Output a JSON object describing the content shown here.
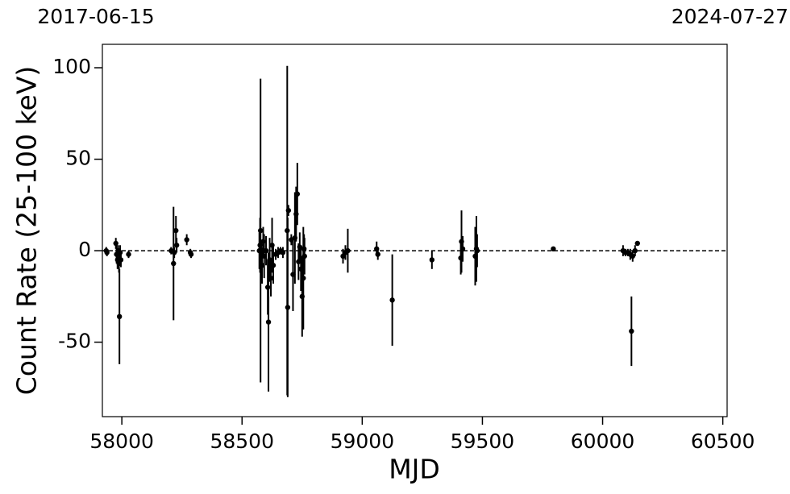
{
  "chart_data": {
    "type": "errorbar-scatter",
    "xlabel": "MJD",
    "ylabel": "Count Rate (25-100 keV)",
    "xlim": [
      57919,
      60518
    ],
    "ylim": [
      -90.7,
      112.8
    ],
    "xticks": [
      58000,
      58500,
      59000,
      59500,
      60000,
      60500
    ],
    "yticks": [
      -50,
      0,
      50,
      100
    ],
    "top_xticks": [
      {
        "value": 57919,
        "label": "2017-06-15"
      },
      {
        "value": 60518,
        "label": "2024-07-27"
      }
    ],
    "reference_line": 0,
    "color": "#000000",
    "x": [
      57935,
      57938,
      57975,
      57978,
      57982,
      57985,
      57988,
      57990,
      57993,
      57996,
      58028,
      58205,
      58215,
      58218,
      58225,
      58228,
      58270,
      58285,
      58288,
      58572,
      58575,
      58577,
      58583,
      58588,
      58592,
      58600,
      58607,
      58610,
      58615,
      58620,
      58625,
      58630,
      58640,
      58650,
      58660,
      58670,
      58688,
      58690,
      58693,
      58705,
      58712,
      58720,
      58725,
      58730,
      58735,
      58740,
      58745,
      58750,
      58755,
      58758,
      58760,
      58920,
      58930,
      58940,
      59060,
      59065,
      59125,
      59290,
      59410,
      59413,
      59418,
      59470,
      59475,
      59478,
      59795,
      60085,
      60095,
      60105,
      60115,
      60120,
      60125,
      60135,
      60145
    ],
    "values": [
      0,
      -1,
      4,
      -2,
      -5,
      0,
      -7,
      -36,
      -1,
      -5,
      -2,
      0,
      -7,
      -1,
      11,
      3,
      6,
      -1,
      -2,
      0,
      3,
      11,
      -8,
      5,
      -3,
      0,
      -20,
      -39,
      -5,
      -15,
      3,
      -8,
      -2,
      -1,
      0,
      -1,
      11,
      -31,
      22,
      6,
      -13,
      7,
      20,
      31,
      -6,
      2,
      -10,
      -25,
      -15,
      1,
      -3,
      -3,
      -1,
      0,
      1,
      -2,
      -27,
      -5,
      -4,
      5,
      1,
      -3,
      1,
      0,
      1,
      0,
      -1,
      -1,
      -2,
      -44,
      -3,
      0,
      4
    ],
    "errors": [
      2,
      2,
      3,
      5,
      5,
      3,
      5,
      26,
      4,
      4,
      2,
      2,
      31,
      3,
      8,
      4,
      3,
      2,
      2,
      10,
      15,
      83,
      10,
      8,
      12,
      8,
      15,
      38,
      12,
      10,
      15,
      10,
      3,
      3,
      2,
      3,
      90,
      49,
      3,
      3,
      20,
      25,
      15,
      17,
      10,
      8,
      12,
      22,
      28,
      8,
      10,
      4,
      4,
      12,
      4,
      3,
      25,
      5,
      9,
      17,
      7,
      16,
      18,
      9,
      1,
      3,
      2,
      2,
      3,
      19,
      3,
      3,
      1
    ]
  }
}
